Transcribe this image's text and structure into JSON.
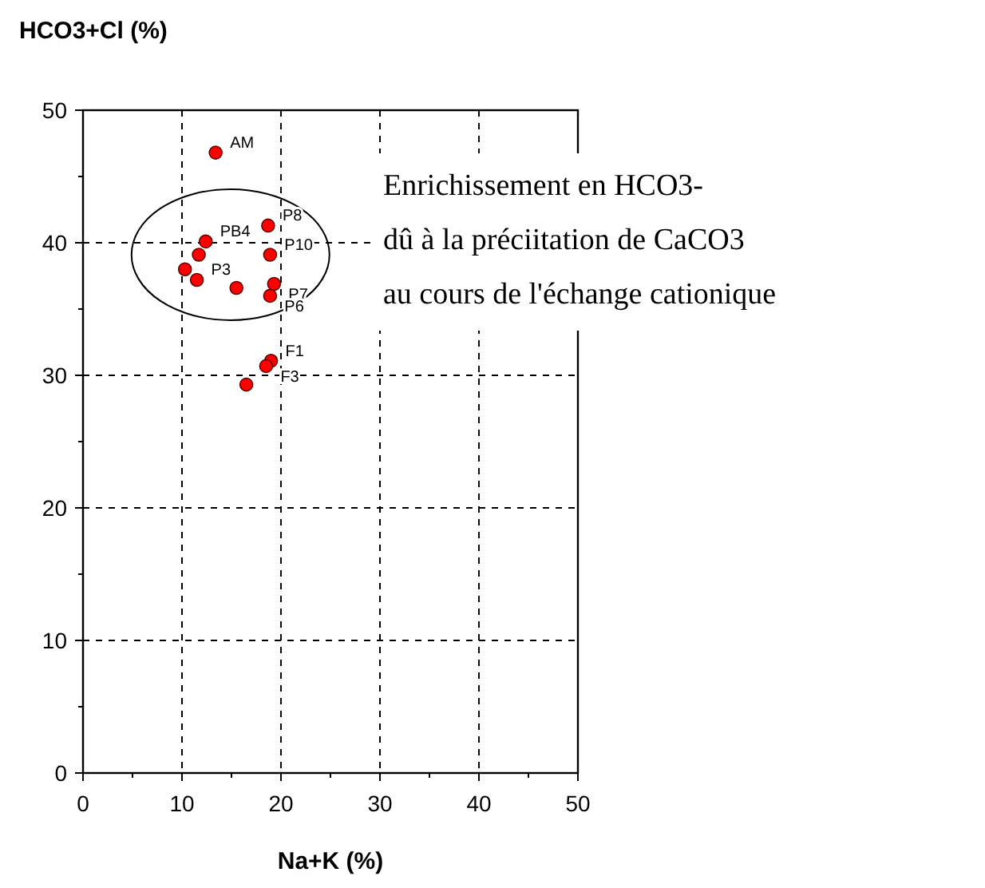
{
  "chart_data": {
    "type": "scatter",
    "xlabel": "Na+K (%)",
    "ylabel": "HCO3+Cl (%)",
    "x": [
      13.4,
      18.7,
      12.4,
      11.7,
      18.9,
      10.3,
      11.5,
      15.5,
      19.3,
      18.9,
      19.0,
      18.5,
      16.5
    ],
    "series": [
      {
        "color": "#ff0000",
        "values": [
          46.8,
          41.3,
          40.1,
          39.1,
          39.1,
          38.0,
          37.2,
          36.6,
          36.9,
          36.0,
          31.1,
          30.7,
          29.3
        ]
      }
    ],
    "xlim": [
      0,
      50
    ],
    "ylim": [
      0,
      50
    ],
    "xticks": [
      0,
      {
        "value": 5,
        "label": null
      },
      10,
      {
        "value": 15,
        "label": null
      },
      20,
      {
        "value": 25,
        "label": null
      },
      30,
      {
        "value": 35,
        "label": null
      },
      40,
      {
        "value": 45,
        "label": null
      },
      50
    ],
    "yticks": [
      0,
      {
        "value": 5,
        "label": null
      },
      10,
      {
        "value": 15,
        "label": null
      },
      20,
      {
        "value": 25,
        "label": null
      },
      30,
      {
        "value": 35,
        "label": null
      },
      40,
      {
        "value": 45,
        "label": null
      },
      50
    ],
    "grid": true,
    "marker": "circle",
    "annotations": [
      {
        "text": "AM",
        "x": 13.4,
        "y": 46.8
      },
      {
        "text": "P8",
        "x": 18.7,
        "y": 41.3
      },
      {
        "text": "PB4",
        "x": 12.4,
        "y": 40.1
      },
      {
        "text": "P10",
        "x": 18.9,
        "y": 39.1
      },
      {
        "text": "P3",
        "x": 11.5,
        "y": 37.2
      },
      {
        "text": "P7",
        "x": 19.3,
        "y": 36.9
      },
      {
        "text": "P6",
        "x": 18.9,
        "y": 36.0
      },
      {
        "text": "F1",
        "x": 19.0,
        "y": 31.1
      },
      {
        "text": "F3",
        "x": 18.5,
        "y": 30.7
      },
      "Enrichissement en HCO3-\ndû à la préciitation de CaCO3\nau cours de l'échange cationique"
    ]
  }
}
